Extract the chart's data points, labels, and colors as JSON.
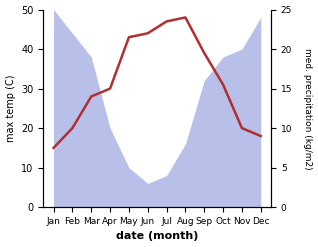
{
  "months": [
    "Jan",
    "Feb",
    "Mar",
    "Apr",
    "May",
    "Jun",
    "Jul",
    "Aug",
    "Sep",
    "Oct",
    "Nov",
    "Dec"
  ],
  "temperature": [
    15,
    20,
    28,
    30,
    43,
    44,
    47,
    48,
    39,
    31,
    20,
    18
  ],
  "precipitation": [
    25,
    22,
    19,
    10,
    5,
    3,
    4,
    8,
    16,
    19,
    20,
    24
  ],
  "temp_color": "#b03030",
  "precip_fill_color": "#b8bfe8",
  "xlabel": "date (month)",
  "ylabel_left": "max temp (C)",
  "ylabel_right": "med. precipitation (kg/m2)",
  "ylim_left": [
    0,
    50
  ],
  "ylim_right": [
    0,
    25
  ],
  "yticks_left": [
    0,
    10,
    20,
    30,
    40,
    50
  ],
  "yticks_right": [
    0,
    5,
    10,
    15,
    20,
    25
  ],
  "background_color": "#ffffff",
  "line_width": 1.8
}
